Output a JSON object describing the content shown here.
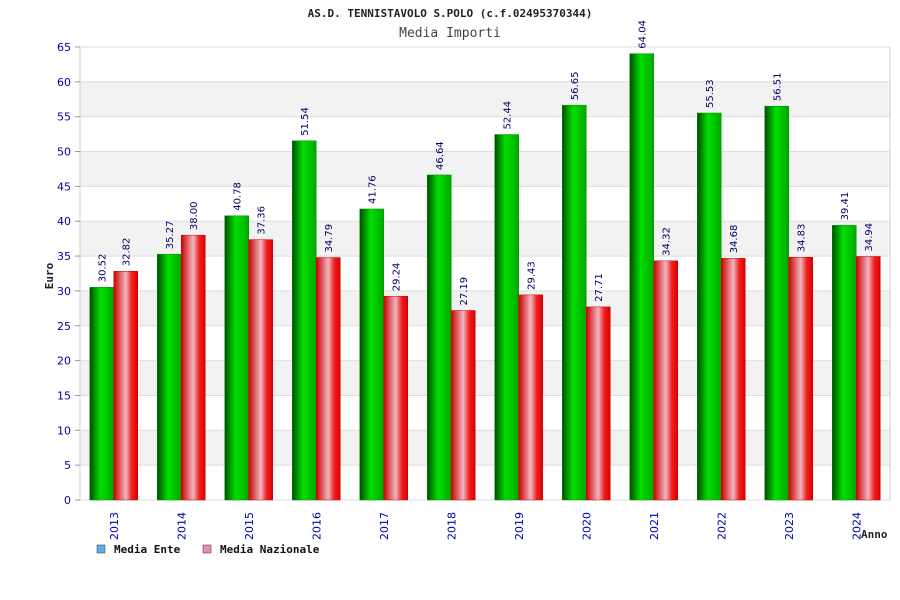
{
  "chart_data": {
    "type": "bar",
    "title": "AS.D. TENNISTAVOLO S.POLO (c.f.02495370344)",
    "subtitle": "Media Importi",
    "xlabel": "Anno",
    "ylabel": "Euro",
    "categories": [
      "2013",
      "2014",
      "2015",
      "2016",
      "2017",
      "2018",
      "2019",
      "2020",
      "2021",
      "2022",
      "2023",
      "2024"
    ],
    "series": [
      {
        "name": "Media Ente",
        "color": "#00c000",
        "values": [
          30.52,
          35.27,
          40.78,
          51.54,
          41.76,
          46.64,
          52.44,
          56.65,
          64.04,
          55.53,
          56.51,
          39.41
        ],
        "labels": [
          "30.52",
          "35.27",
          "40.78",
          "51.54",
          "41.76",
          "46.64",
          "52.44",
          "56.65",
          "64.04",
          "55.53",
          "56.51",
          "39.41"
        ]
      },
      {
        "name": "Media Nazionale",
        "color": "#ee0000",
        "values": [
          32.82,
          38.0,
          37.36,
          34.79,
          29.24,
          27.19,
          29.43,
          27.71,
          34.32,
          34.68,
          34.83,
          34.94
        ],
        "labels": [
          "32.82",
          "38.00",
          "37.36",
          "34.79",
          "29.24",
          "27.19",
          "29.43",
          "27.71",
          "34.32",
          "34.68",
          "34.83",
          "34.94"
        ]
      }
    ],
    "ylim": [
      0,
      65
    ],
    "yticks": [
      "0",
      "5",
      "10",
      "15",
      "20",
      "25",
      "30",
      "35",
      "40",
      "45",
      "50",
      "55",
      "60",
      "65"
    ],
    "grid": true,
    "legend": "bottom-left"
  },
  "legend_colors": {
    "ente": "#66aaee",
    "nazionale": "#ee88bb"
  }
}
